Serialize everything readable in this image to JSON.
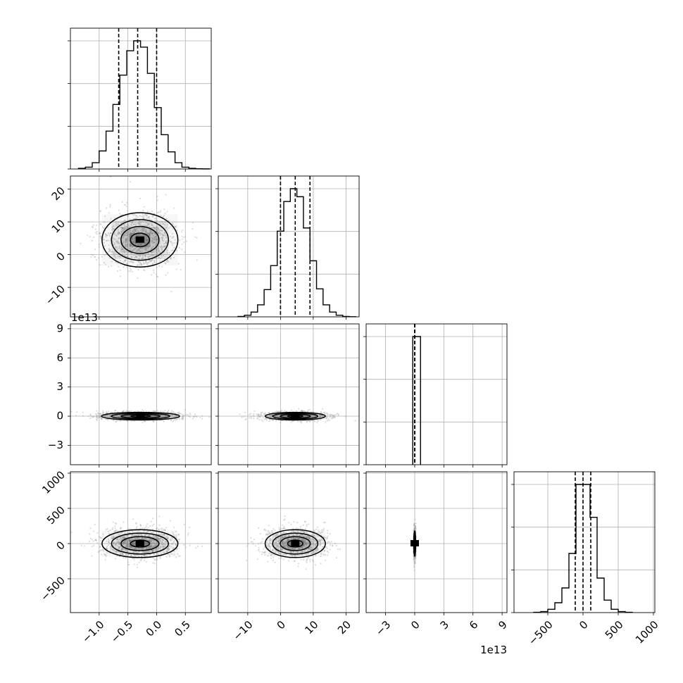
{
  "chart_data": {
    "type": "corner",
    "grid": true,
    "histogram_style": "step",
    "quantile_lines": "dashed",
    "parameters": [
      {
        "range": [
          -1.5,
          0.95
        ],
        "ticks": [
          -1.0,
          -0.5,
          0.0,
          0.5
        ],
        "tick_labels": [
          "−1.0",
          "−0.5",
          "0.0",
          "0.5"
        ],
        "quantiles": [
          -0.66,
          -0.33,
          0.0
        ],
        "hist_bins": [
          -1.36,
          -1.24,
          -1.12,
          -1.0,
          -0.88,
          -0.76,
          -0.64,
          -0.52,
          -0.4,
          -0.28,
          -0.16,
          -0.04,
          0.08,
          0.2,
          0.32,
          0.44,
          0.56,
          0.68,
          0.8,
          0.92
        ],
        "hist_counts": [
          1.5,
          4,
          14,
          40,
          84,
          143,
          208,
          262,
          284,
          270,
          212,
          136,
          76,
          38,
          14,
          4,
          1.5,
          0.5,
          0.2
        ]
      },
      {
        "range": [
          -19,
          24
        ],
        "ticks": [
          -10,
          0,
          10,
          20
        ],
        "tick_labels": [
          "−10",
          "0",
          "10",
          "20"
        ],
        "quantiles": [
          0.0,
          4.5,
          9.0
        ],
        "hist_bins": [
          -13,
          -11,
          -9,
          -7,
          -5,
          -3,
          -1,
          1,
          3,
          5,
          7,
          9,
          11,
          13,
          15,
          17,
          19,
          21,
          23
        ],
        "hist_counts": [
          0.5,
          2,
          6,
          15,
          34,
          64,
          107,
          144,
          160,
          150,
          111,
          70,
          35,
          15,
          6,
          2,
          0.5,
          0.2
        ]
      },
      {
        "range": [
          -50000000000000.0,
          95000000000000.0
        ],
        "ticks": [
          -30000000000000.0,
          0,
          30000000000000.0,
          60000000000000.0,
          90000000000000.0
        ],
        "tick_labels": [
          "−3",
          "0",
          "3",
          "6",
          "9"
        ],
        "offset_label": "1e13",
        "quantiles": [
          -100000000000.0,
          0,
          100000000000.0
        ],
        "hist_bins": [
          -2000000000000.0,
          6000000000000.0
        ],
        "hist_counts": [
          1
        ]
      },
      {
        "range": [
          -980,
          1020
        ],
        "ticks": [
          -500,
          0,
          500,
          1000
        ],
        "tick_labels": [
          "−500",
          "0",
          "500",
          "1000"
        ],
        "quantiles": [
          -110,
          0,
          110
        ],
        "hist_bins": [
          -700,
          -600,
          -500,
          -400,
          -300,
          -200,
          -100,
          0,
          100,
          200,
          300,
          400,
          500,
          600,
          700
        ],
        "hist_counts": [
          1,
          3,
          10,
          30,
          75,
          180,
          390,
          390,
          290,
          105,
          38,
          10,
          3,
          1
        ]
      }
    ],
    "pair_blobs": [
      {
        "i": 1,
        "j": 0,
        "center": [
          -0.29,
          4.5
        ],
        "sigma": [
          0.33,
          4.6
        ]
      },
      {
        "i": 2,
        "j": 0,
        "center": [
          -0.28,
          0.0
        ],
        "sigma": [
          0.34,
          2200000000000.0
        ]
      },
      {
        "i": 2,
        "j": 1,
        "center": [
          4.5,
          0.0
        ],
        "sigma": [
          4.6,
          2200000000000.0
        ]
      },
      {
        "i": 3,
        "j": 0,
        "center": [
          -0.29,
          0.0
        ],
        "sigma": [
          0.33,
          110
        ]
      },
      {
        "i": 3,
        "j": 1,
        "center": [
          4.5,
          0.0
        ],
        "sigma": [
          4.6,
          110
        ]
      },
      {
        "i": 3,
        "j": 2,
        "center": [
          0.0,
          0.0
        ],
        "sigma": [
          500000000000.0,
          100
        ]
      }
    ],
    "colors": {
      "line": "#000000",
      "grid": "#b0b0b0",
      "points": "#9a9a9a",
      "fill": "#404040"
    }
  }
}
